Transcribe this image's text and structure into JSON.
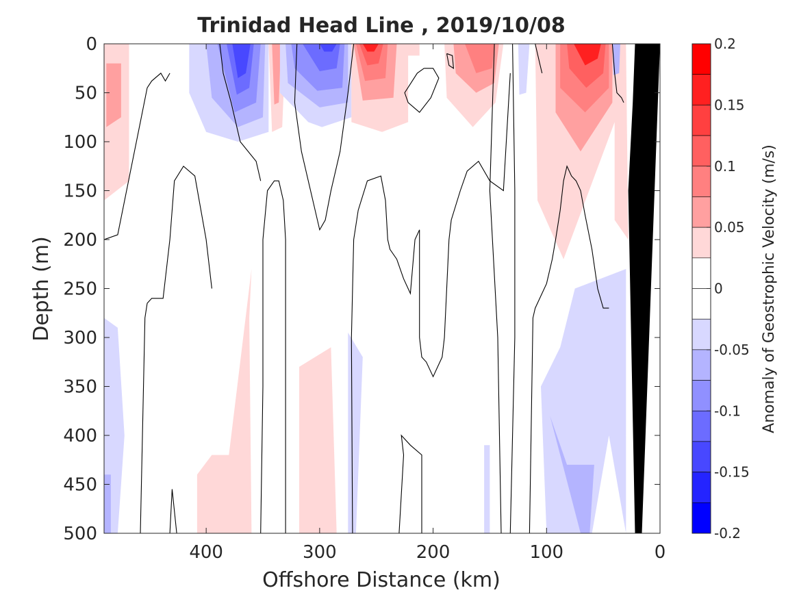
{
  "chart_data": {
    "type": "heatmap",
    "title": "Trinidad Head Line , 2019/10/08",
    "xlabel": "Offshore Distance (km)",
    "ylabel": "Depth (m)",
    "x_axis": {
      "range": [
        490,
        0
      ],
      "reversed": true,
      "ticks": [
        400,
        300,
        200,
        100,
        0
      ]
    },
    "y_axis": {
      "range": [
        0,
        500
      ],
      "reversed": true,
      "ticks": [
        0,
        50,
        100,
        150,
        200,
        250,
        300,
        350,
        400,
        450,
        500
      ]
    },
    "colorbar": {
      "label": "Anomaly of Geostrophic Velocity (m/s)",
      "range": [
        -0.2,
        0.2
      ],
      "ticks": [
        0.2,
        0.15,
        0.1,
        0.05,
        0,
        -0.05,
        -0.1,
        -0.15,
        -0.2
      ],
      "tick_labels": [
        "0.2",
        "0.15",
        "0.1",
        "0.05",
        "0",
        "-0.05",
        "-0.1",
        "-0.15",
        "-0.2"
      ],
      "levels": [
        {
          "range": [
            0.175,
            0.2
          ],
          "color": "#ff0000"
        },
        {
          "range": [
            0.15,
            0.175
          ],
          "color": "#ff2020"
        },
        {
          "range": [
            0.125,
            0.15
          ],
          "color": "#ff4040"
        },
        {
          "range": [
            0.1,
            0.125
          ],
          "color": "#ff6060"
        },
        {
          "range": [
            0.075,
            0.1
          ],
          "color": "#ff8080"
        },
        {
          "range": [
            0.05,
            0.075
          ],
          "color": "#ffa0a0"
        },
        {
          "range": [
            0.025,
            0.05
          ],
          "color": "#ffd8d8"
        },
        {
          "range": [
            0,
            0.025
          ],
          "color": "#ffffff"
        },
        {
          "range": [
            -0.025,
            0
          ],
          "color": "#ffffff"
        },
        {
          "range": [
            -0.05,
            -0.025
          ],
          "color": "#d8d8ff"
        },
        {
          "range": [
            -0.075,
            -0.05
          ],
          "color": "#b4b4ff"
        },
        {
          "range": [
            -0.1,
            -0.075
          ],
          "color": "#9090ff"
        },
        {
          "range": [
            -0.125,
            -0.1
          ],
          "color": "#6c6cff"
        },
        {
          "range": [
            -0.15,
            -0.125
          ],
          "color": "#4848ff"
        },
        {
          "range": [
            -0.175,
            -0.15
          ],
          "color": "#2424ff"
        },
        {
          "range": [
            -0.2,
            -0.175
          ],
          "color": "#0000ff"
        }
      ]
    },
    "regions": [
      {
        "sign": "pos",
        "x": [
          490,
          468,
          468,
          490
        ],
        "y": [
          0,
          0,
          140,
          160
        ],
        "level": 0.03
      },
      {
        "sign": "pos",
        "x": [
          488,
          475,
          475,
          488
        ],
        "y": [
          20,
          20,
          75,
          85
        ],
        "level": 0.06
      },
      {
        "sign": "neg",
        "x": [
          490,
          478,
          472,
          478,
          490
        ],
        "y": [
          280,
          290,
          400,
          500,
          500
        ],
        "level": -0.03
      },
      {
        "sign": "neg",
        "x": [
          490,
          484,
          484,
          490
        ],
        "y": [
          440,
          440,
          500,
          500
        ],
        "level": -0.06
      },
      {
        "sign": "neg",
        "x": [
          415,
          345,
          345,
          372,
          400,
          415
        ],
        "y": [
          0,
          0,
          90,
          100,
          90,
          50
        ],
        "level": -0.03
      },
      {
        "sign": "neg",
        "x": [
          400,
          348,
          350,
          372,
          395
        ],
        "y": [
          0,
          0,
          75,
          85,
          55
        ],
        "level": -0.06
      },
      {
        "sign": "neg",
        "x": [
          390,
          352,
          356,
          375
        ],
        "y": [
          0,
          0,
          60,
          70
        ],
        "level": -0.09
      },
      {
        "sign": "neg",
        "x": [
          382,
          358,
          362,
          373
        ],
        "y": [
          0,
          0,
          45,
          52
        ],
        "level": -0.12
      },
      {
        "sign": "neg",
        "x": [
          377,
          361,
          365,
          372
        ],
        "y": [
          0,
          0,
          30,
          35
        ],
        "level": -0.15
      },
      {
        "sign": "pos",
        "x": [
          345,
          330,
          333,
          342
        ],
        "y": [
          0,
          0,
          85,
          90
        ],
        "level": 0.03
      },
      {
        "sign": "pos",
        "x": [
          342,
          334,
          336,
          340
        ],
        "y": [
          0,
          0,
          60,
          62
        ],
        "level": 0.06
      },
      {
        "sign": "pos",
        "x": [
          380,
          360,
          362,
          360,
          408,
          408,
          395
        ],
        "y": [
          420,
          230,
          280,
          500,
          500,
          440,
          420
        ],
        "level": 0.03
      },
      {
        "sign": "neg",
        "x": [
          335,
          272,
          272,
          298,
          310,
          335
        ],
        "y": [
          0,
          0,
          75,
          85,
          80,
          50
        ],
        "level": -0.03
      },
      {
        "sign": "neg",
        "x": [
          330,
          275,
          275,
          300,
          328
        ],
        "y": [
          0,
          0,
          60,
          65,
          40
        ],
        "level": -0.06
      },
      {
        "sign": "neg",
        "x": [
          325,
          278,
          280,
          302,
          322
        ],
        "y": [
          0,
          0,
          45,
          48,
          25
        ],
        "level": -0.09
      },
      {
        "sign": "neg",
        "x": [
          315,
          282,
          285,
          300
        ],
        "y": [
          0,
          0,
          25,
          28
        ],
        "level": -0.12
      },
      {
        "sign": "neg",
        "x": [
          300,
          285,
          289,
          296
        ],
        "y": [
          0,
          0,
          8,
          8
        ],
        "level": -0.15
      },
      {
        "sign": "pos",
        "x": [
          318,
          290,
          285,
          318
        ],
        "y": [
          330,
          310,
          500,
          500
        ],
        "level": 0.03
      },
      {
        "sign": "pos",
        "x": [
          272,
          222,
          222,
          245,
          272
        ],
        "y": [
          0,
          0,
          80,
          90,
          80
        ],
        "level": 0.03
      },
      {
        "sign": "pos",
        "x": [
          270,
          232,
          235,
          262
        ],
        "y": [
          0,
          0,
          55,
          58
        ],
        "level": 0.06
      },
      {
        "sign": "pos",
        "x": [
          268,
          240,
          242,
          260
        ],
        "y": [
          0,
          0,
          35,
          38
        ],
        "level": 0.09
      },
      {
        "sign": "pos",
        "x": [
          265,
          244,
          248,
          258
        ],
        "y": [
          0,
          0,
          20,
          22
        ],
        "level": 0.12
      },
      {
        "sign": "pos",
        "x": [
          262,
          248,
          252,
          258
        ],
        "y": [
          0,
          0,
          8,
          8
        ],
        "level": 0.15
      },
      {
        "sign": "neg",
        "x": [
          275,
          262,
          268,
          275
        ],
        "y": [
          295,
          320,
          500,
          500
        ],
        "level": -0.03
      },
      {
        "sign": "pos",
        "x": [
          225,
          212,
          212,
          225
        ],
        "y": [
          0,
          0,
          12,
          12
        ],
        "level": 0.03
      },
      {
        "sign": "pos",
        "x": [
          190,
          138,
          145,
          165,
          188
        ],
        "y": [
          0,
          0,
          60,
          85,
          55
        ],
        "level": 0.03
      },
      {
        "sign": "pos",
        "x": [
          182,
          142,
          146,
          162,
          180
        ],
        "y": [
          0,
          0,
          40,
          50,
          30
        ],
        "level": 0.06
      },
      {
        "sign": "pos",
        "x": [
          172,
          146,
          148,
          162
        ],
        "y": [
          0,
          0,
          25,
          30
        ],
        "level": 0.09
      },
      {
        "sign": "neg",
        "x": [
          155,
          150,
          150,
          155
        ],
        "y": [
          410,
          410,
          500,
          500
        ],
        "level": -0.03
      },
      {
        "sign": "neg",
        "x": [
          125,
          115,
          118,
          124
        ],
        "y": [
          0,
          0,
          50,
          52
        ],
        "level": -0.03
      },
      {
        "sign": "pos",
        "x": [
          110,
          75,
          30,
          28,
          40,
          40,
          85,
          108
        ],
        "y": [
          0,
          0,
          0,
          200,
          180,
          80,
          220,
          160
        ],
        "level": 0.03
      },
      {
        "sign": "pos",
        "x": [
          92,
          42,
          42,
          70,
          92
        ],
        "y": [
          0,
          0,
          60,
          110,
          70
        ],
        "level": 0.06
      },
      {
        "sign": "pos",
        "x": [
          88,
          45,
          45,
          66,
          88
        ],
        "y": [
          0,
          0,
          45,
          70,
          45
        ],
        "level": 0.09
      },
      {
        "sign": "pos",
        "x": [
          82,
          48,
          50,
          65,
          80
        ],
        "y": [
          0,
          0,
          30,
          45,
          25
        ],
        "level": 0.12
      },
      {
        "sign": "pos",
        "x": [
          76,
          52,
          55,
          66
        ],
        "y": [
          0,
          0,
          15,
          22
        ],
        "level": 0.15
      },
      {
        "sign": "neg",
        "x": [
          42,
          35,
          36,
          41
        ],
        "y": [
          0,
          0,
          30,
          32
        ],
        "level": -0.06
      },
      {
        "sign": "neg",
        "x": [
          105,
          88,
          75,
          30,
          30,
          45,
          60,
          100
        ],
        "y": [
          350,
          310,
          250,
          230,
          500,
          400,
          500,
          500
        ],
        "level": -0.03
      },
      {
        "sign": "neg",
        "x": [
          97,
          82,
          58,
          62,
          70
        ],
        "y": [
          380,
          430,
          430,
          500,
          500
        ],
        "level": -0.06
      }
    ],
    "zero_contours": [
      {
        "x": [
          490,
          478,
          458,
          452,
          448,
          440,
          436,
          432
        ],
        "y": [
          200,
          195,
          80,
          45,
          38,
          30,
          38,
          30
        ]
      },
      {
        "x": [
          458,
          454,
          452,
          448,
          438,
          432,
          428,
          420,
          410,
          400,
          395
        ],
        "y": [
          500,
          280,
          265,
          260,
          260,
          200,
          140,
          125,
          135,
          200,
          250
        ]
      },
      {
        "x": [
          432,
          430,
          426
        ],
        "y": [
          500,
          455,
          500
        ]
      },
      {
        "x": [
          352,
          350,
          350,
          346,
          340,
          336,
          332,
          330,
          330
        ],
        "y": [
          500,
          350,
          200,
          150,
          140,
          140,
          160,
          200,
          500
        ]
      },
      {
        "x": [
          352,
          356,
          370,
          378,
          385,
          388
        ],
        "y": [
          140,
          120,
          100,
          60,
          30,
          0
        ]
      },
      {
        "x": [
          320,
          322,
          316,
          308,
          300,
          295,
          290,
          282,
          275,
          272,
          270
        ],
        "y": [
          0,
          60,
          110,
          150,
          190,
          180,
          150,
          110,
          50,
          20,
          0
        ]
      },
      {
        "x": [
          271,
          272,
          270,
          266,
          258,
          246,
          242,
          240,
          238,
          232,
          226,
          220,
          216,
          212,
          212,
          210,
          206,
          200,
          192,
          190,
          186,
          184,
          176,
          170,
          160,
          150,
          138,
          132
        ],
        "y": [
          500,
          300,
          200,
          170,
          140,
          135,
          160,
          200,
          210,
          220,
          240,
          255,
          200,
          190,
          300,
          320,
          325,
          340,
          320,
          300,
          200,
          180,
          150,
          130,
          120,
          140,
          150,
          30
        ]
      },
      {
        "x": [
          230,
          226,
          228,
          220,
          210,
          210
        ],
        "y": [
          500,
          420,
          400,
          410,
          420,
          500
        ]
      },
      {
        "x": [
          208,
          214,
          225,
          222,
          212,
          202,
          195,
          200,
          208
        ],
        "y": [
          25,
          30,
          50,
          60,
          70,
          55,
          35,
          25,
          25
        ]
      },
      {
        "x": [
          188,
          183,
          182,
          186,
          188
        ],
        "y": [
          10,
          12,
          25,
          22,
          10
        ]
      },
      {
        "x": [
          130,
          128,
          128,
          132,
          140,
          143,
          150,
          146
        ],
        "y": [
          0,
          150,
          300,
          500,
          500,
          300,
          150,
          0
        ]
      },
      {
        "x": [
          115,
          112,
          110,
          100,
          95,
          92,
          88,
          85,
          82,
          80,
          78,
          74,
          70,
          66,
          60,
          55,
          50,
          45
        ],
        "y": [
          500,
          280,
          270,
          245,
          220,
          200,
          170,
          140,
          125,
          130,
          135,
          140,
          150,
          175,
          210,
          250,
          270,
          270
        ]
      },
      {
        "x": [
          110,
          106,
          104
        ],
        "y": [
          0,
          20,
          30
        ]
      },
      {
        "x": [
          42,
          40,
          38,
          34,
          32
        ],
        "y": [
          0,
          30,
          50,
          55,
          60
        ]
      }
    ],
    "seafloor": {
      "x": [
        0,
        16,
        22,
        28,
        24,
        22
      ],
      "y": [
        0,
        500,
        500,
        150,
        60,
        0
      ]
    }
  }
}
